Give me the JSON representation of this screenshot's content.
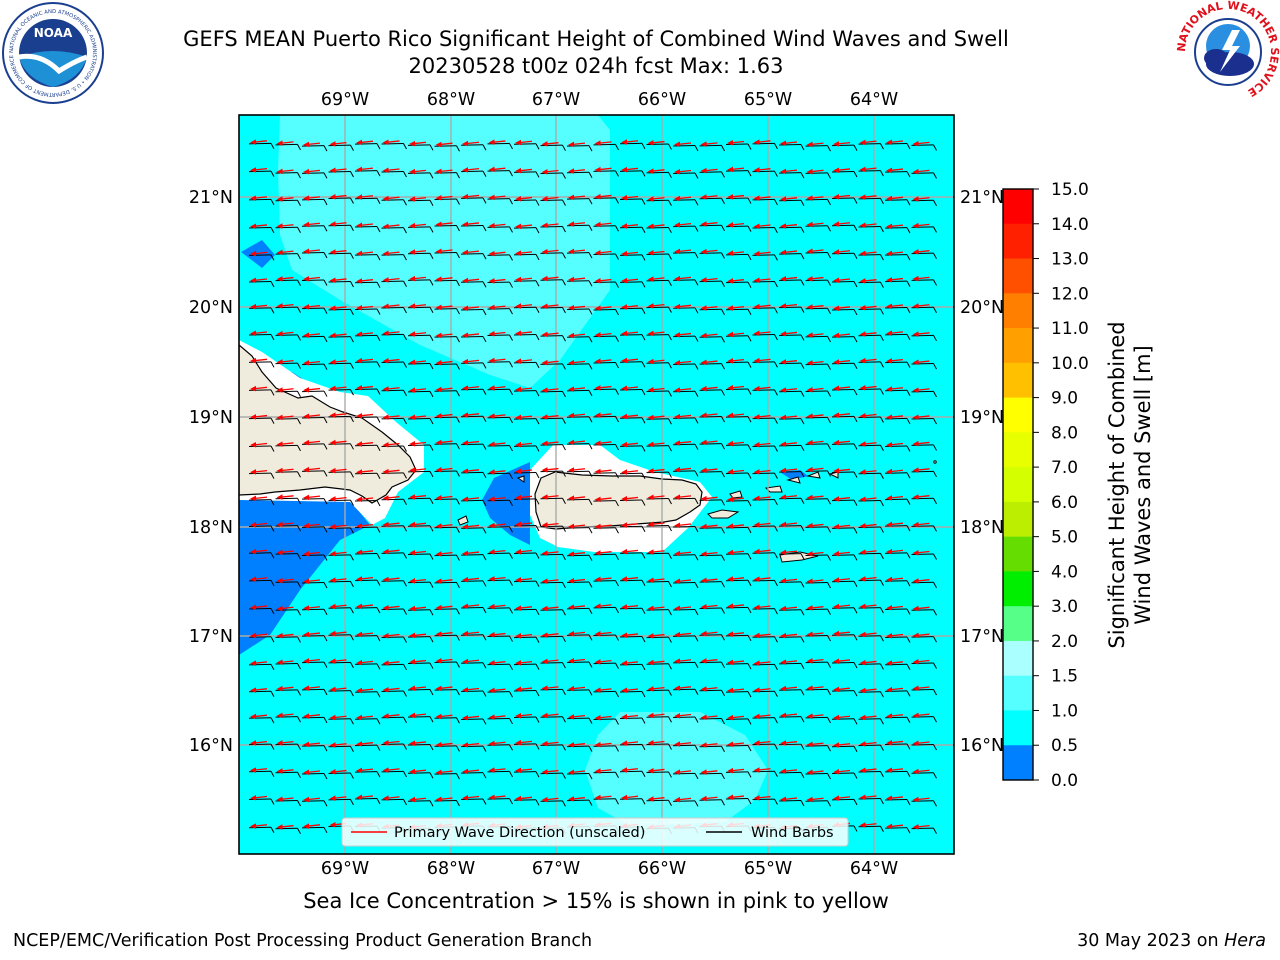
{
  "title": {
    "line1": "GEFS MEAN Puerto Rico Significant Height of Combined Wind Waves and Swell",
    "line2": "20230528 t00z 024h fcst   Max: 1.63"
  },
  "logos": {
    "left": {
      "icon": "noaa-logo-icon",
      "text": "NOAA",
      "ring_text": "NATIONAL OCEANIC AND ATMOSPHERIC ADMINISTRATION • U.S. DEPARTMENT OF COMMERCE"
    },
    "right": {
      "icon": "nws-logo-icon",
      "ring_text": "NATIONAL WEATHER SERVICE"
    }
  },
  "map": {
    "lon_labels": [
      "69°W",
      "68°W",
      "67°W",
      "66°W",
      "65°W",
      "64°W"
    ],
    "lat_labels": [
      "21°N",
      "20°N",
      "19°N",
      "18°N",
      "17°N",
      "16°N"
    ],
    "colors": {
      "ocean": "#00ffff",
      "light_field": "#55ffff",
      "lighter_field": "#aaffff",
      "blue_field": "#0080ff",
      "land": "#efecdd",
      "coast": "#000000",
      "wave_arrow": "#ff0000",
      "wind_barb": "#000000",
      "grid": "#aaaaaa"
    },
    "legend": {
      "wave_label": "Primary Wave Direction (unscaled)",
      "barb_label": "Wind Barbs"
    }
  },
  "colorbar": {
    "label_line1": "Significant Height of Combined",
    "label_line2": "Wind Waves and Swell [m]",
    "ticks": [
      "15.0",
      "14.0",
      "13.0",
      "12.0",
      "11.0",
      "10.0",
      "9.0",
      "8.0",
      "7.0",
      "6.0",
      "5.0",
      "4.0",
      "3.0",
      "2.0",
      "1.5",
      "1.0",
      "0.5",
      "0.0"
    ],
    "colors_top_to_bottom": [
      "#ff0000",
      "#ff2000",
      "#ff5000",
      "#ff8000",
      "#ffa000",
      "#ffc000",
      "#ffff00",
      "#e8ff00",
      "#d4ff00",
      "#bbee00",
      "#66dd00",
      "#00ee00",
      "#55ff88",
      "#aaffff",
      "#55ffff",
      "#00ffff",
      "#0080ff",
      "#0000ff"
    ]
  },
  "caption": "Sea Ice Concentration > 15% is shown in pink to yellow",
  "footer": {
    "left": "NCEP/EMC/Verification Post Processing Product Generation Branch",
    "date": "30 May 2023 on ",
    "host": "Hera"
  }
}
